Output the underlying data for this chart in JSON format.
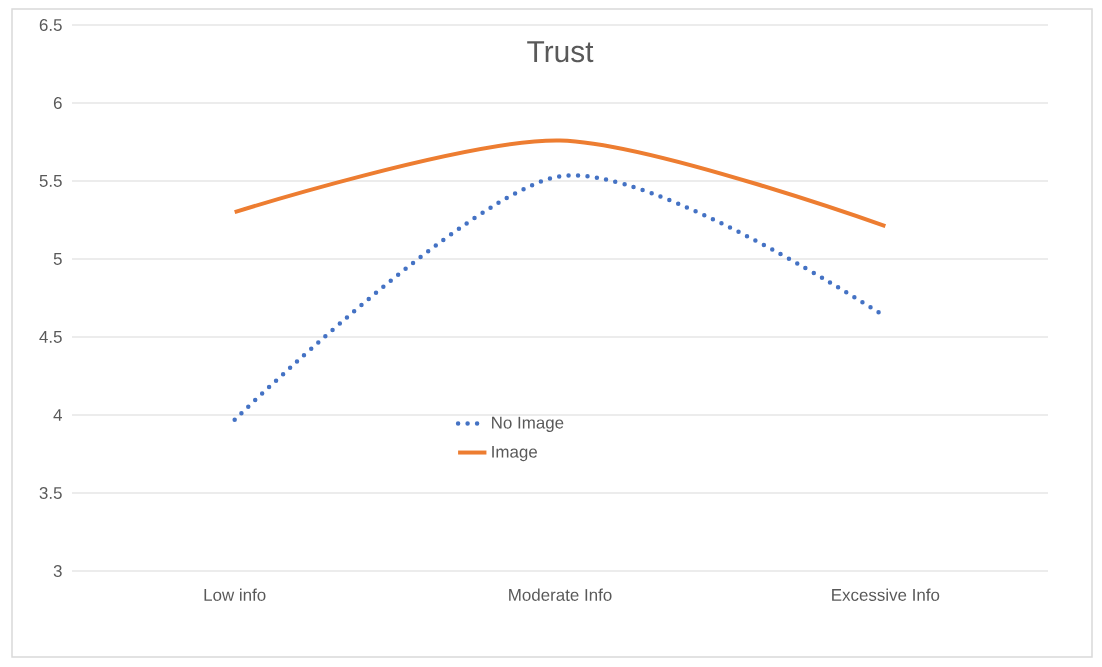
{
  "chart_data": {
    "type": "line",
    "title": "Trust",
    "categories": [
      "Low info",
      "Moderate Info",
      "Excessive Info"
    ],
    "series": [
      {
        "name": "No Image",
        "color": "#4472c4",
        "line_style": "dotted",
        "values": [
          3.97,
          5.53,
          4.63
        ]
      },
      {
        "name": "Image",
        "color": "#ed7d31",
        "line_style": "solid",
        "values": [
          5.3,
          5.76,
          5.21
        ]
      }
    ],
    "ylim": [
      3,
      6.5
    ],
    "yticks": [
      3,
      3.5,
      4,
      4.5,
      5,
      5.5,
      6,
      6.5
    ],
    "grid": "y",
    "legend": "bottom"
  }
}
